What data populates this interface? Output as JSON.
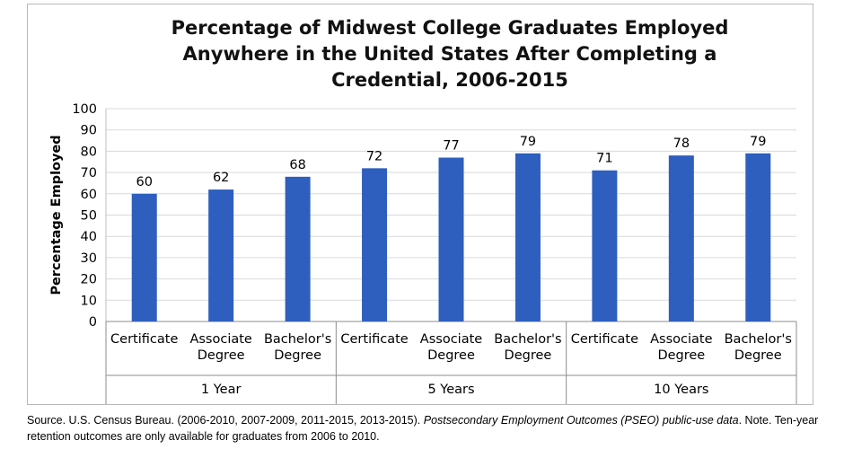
{
  "chart_data": {
    "type": "bar",
    "title": "Percentage of Midwest College Graduates Employed\nAnywhere in the United States After Completing a\nCredential, 2006-2015",
    "ylabel": "Percentage Employed",
    "xlabel": "",
    "ylim": [
      0,
      100
    ],
    "yticks": [
      "0",
      "10",
      "20",
      "30",
      "40",
      "50",
      "60",
      "70",
      "80",
      "90",
      "100"
    ],
    "grid": true,
    "bar_color": "#2e5fbe",
    "groups": [
      {
        "label": "1 Year",
        "categories": [
          "Certificate",
          "Associate\nDegree",
          "Bachelor's\nDegree"
        ],
        "values": [
          60,
          62,
          68
        ]
      },
      {
        "label": "5 Years",
        "categories": [
          "Certificate",
          "Associate\nDegree",
          "Bachelor's\nDegree"
        ],
        "values": [
          72,
          77,
          79
        ]
      },
      {
        "label": "10 Years",
        "categories": [
          "Certificate",
          "Associate\nDegree",
          "Bachelor's\nDegree"
        ],
        "values": [
          71,
          78,
          79
        ]
      }
    ]
  },
  "footer": {
    "source_prefix": "Source. U.S. Census Bureau. (2006-2010, 2007-2009, 2011-2015, 2013-2015). ",
    "source_italic": "Postsecondary Employment Outcomes (PSEO) public-use data",
    "source_suffix": ". Note. Ten-year retention outcomes are only available for graduates from 2006 to 2010."
  }
}
